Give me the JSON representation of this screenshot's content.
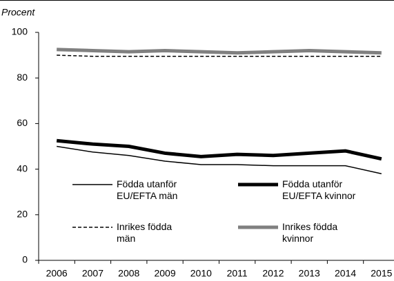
{
  "chart_data": {
    "type": "line",
    "y_label": "Procent",
    "categories": [
      "2006",
      "2007",
      "2008",
      "2009",
      "2010",
      "2011",
      "2012",
      "2013",
      "2014",
      "2015"
    ],
    "series": [
      {
        "name": "Födda utanför\nEU/EFTA män",
        "color": "#000000",
        "width": 1.5,
        "dash": false,
        "values": [
          50,
          47.5,
          46,
          43.5,
          42,
          42,
          41.5,
          41.5,
          41.5,
          38
        ]
      },
      {
        "name": "Födda utanför\nEU/EFTA kvinnor",
        "color": "#000000",
        "width": 5,
        "dash": false,
        "values": [
          52.5,
          51,
          50,
          47,
          45.5,
          46.5,
          46,
          47,
          48,
          44.5
        ]
      },
      {
        "name": "Inrikes födda\nmän",
        "color": "#000000",
        "width": 1.5,
        "dash": true,
        "values": [
          90,
          89.5,
          89.5,
          89.5,
          89.5,
          89.5,
          89.5,
          89.5,
          89.5,
          89.5
        ]
      },
      {
        "name": "Inrikes födda\nkvinnor",
        "color": "#808080",
        "width": 5,
        "dash": false,
        "values": [
          92.5,
          92,
          91.5,
          92,
          91.5,
          91,
          91.5,
          92,
          91.5,
          91
        ]
      }
    ],
    "ylim": [
      0,
      100
    ],
    "yticks": [
      0,
      20,
      40,
      60,
      80,
      100
    ],
    "grid": false
  }
}
